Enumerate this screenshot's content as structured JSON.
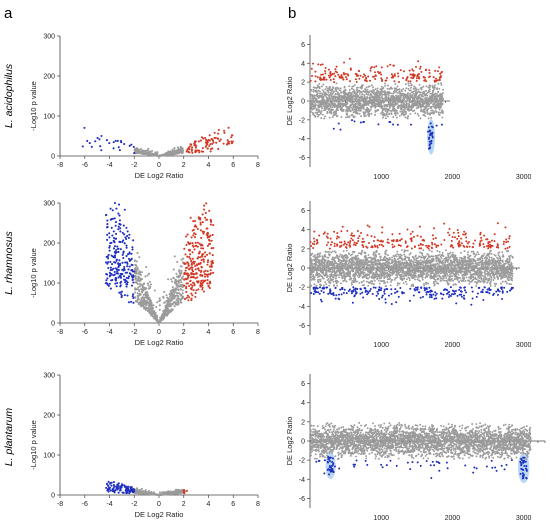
{
  "panel_labels": {
    "a": "a",
    "b": "b"
  },
  "colors": {
    "up": "#d23a26",
    "down": "#1f2fc0",
    "neutral": "#9b9b9b",
    "highlight": "#9fcaf0"
  },
  "chart_data": [
    {
      "id": "a1",
      "type": "scatter",
      "panel": "a",
      "species": "L. acidophilus",
      "xlabel": "DE Log2 Ratio",
      "ylabel": "-Log10 p value",
      "xlim": [
        -8,
        8
      ],
      "ylim": [
        0,
        300
      ],
      "x_ticks": [
        -8,
        -6,
        -4,
        -2,
        0,
        2,
        4,
        6,
        8
      ],
      "y_ticks": [
        0,
        100,
        200,
        300
      ],
      "spread": 9,
      "down_n": 26,
      "up_n": 90,
      "neutral_n": 380,
      "y_cap": 110,
      "down_x": [
        -6.2,
        -2.0
      ],
      "up_x": [
        2.0,
        6.0
      ]
    },
    {
      "id": "a2",
      "type": "scatter",
      "panel": "a",
      "species": "L. rhamnosus",
      "xlabel": "DE Log2 Ratio",
      "ylabel": "-Log10 p value",
      "xlim": [
        -8,
        8
      ],
      "ylim": [
        0,
        300
      ],
      "x_ticks": [
        -8,
        -6,
        -4,
        -2,
        0,
        2,
        4,
        6,
        8
      ],
      "y_ticks": [
        0,
        100,
        200,
        300
      ],
      "spread": 70,
      "down_n": 230,
      "up_n": 270,
      "neutral_n": 600,
      "y_cap": 300,
      "down_x": [
        -4.3,
        -2.0
      ],
      "up_x": [
        2.0,
        4.4
      ]
    },
    {
      "id": "a3",
      "type": "scatter",
      "panel": "a",
      "species": "L. plantarum",
      "xlabel": "DE Log2 Ratio",
      "ylabel": "-Log10 p value",
      "xlim": [
        -8,
        8
      ],
      "ylim": [
        0,
        300
      ],
      "x_ticks": [
        -8,
        -6,
        -4,
        -2,
        0,
        2,
        4,
        6,
        8
      ],
      "y_ticks": [
        0,
        100,
        200,
        300
      ],
      "spread": 6,
      "down_n": 95,
      "up_n": 6,
      "neutral_n": 420,
      "y_cap": 110,
      "down_x": [
        -4.3,
        -2.0
      ],
      "up_x": [
        2.0,
        2.3
      ]
    },
    {
      "id": "b1",
      "type": "scatter",
      "panel": "b",
      "ylabel": "DE Log2 Ratio",
      "xlim": [
        0,
        3300
      ],
      "ylim": [
        -7,
        7
      ],
      "x_ticks": [
        1000,
        2000,
        3000
      ],
      "y_ticks": [
        -6,
        -4,
        -2,
        0,
        2,
        4,
        6
      ],
      "n_genes": 1870,
      "up_n": 190,
      "down_n": 45,
      "highlight": {
        "x_center": 1700,
        "y_center": -3.8,
        "rx_units": 55,
        "ry_units": 1.9
      }
    },
    {
      "id": "b2",
      "type": "scatter",
      "panel": "b",
      "ylabel": "DE Log2 Ratio",
      "xlim": [
        0,
        3300
      ],
      "ylim": [
        -7,
        7
      ],
      "x_ticks": [
        1000,
        2000,
        3000
      ],
      "y_ticks": [
        -6,
        -4,
        -2,
        0,
        2,
        4,
        6
      ],
      "n_genes": 2850,
      "up_n": 260,
      "down_n": 250,
      "highlight": null
    },
    {
      "id": "b3",
      "type": "scatter",
      "panel": "b",
      "ylabel": "DE Log2 Ratio",
      "xlim": [
        0,
        3300
      ],
      "ylim": [
        -7,
        7
      ],
      "x_ticks": [
        1000,
        2000,
        3000
      ],
      "y_ticks": [
        -6,
        -4,
        -2,
        0,
        2,
        4,
        6
      ],
      "n_genes": 3100,
      "up_n": 0,
      "down_n": 110,
      "highlight": null,
      "highlights": [
        {
          "x_center": 290,
          "y_center": -2.6,
          "rx_units": 70,
          "ry_units": 1.4
        },
        {
          "x_center": 3000,
          "y_center": -2.8,
          "rx_units": 80,
          "ry_units": 1.6
        }
      ]
    }
  ]
}
